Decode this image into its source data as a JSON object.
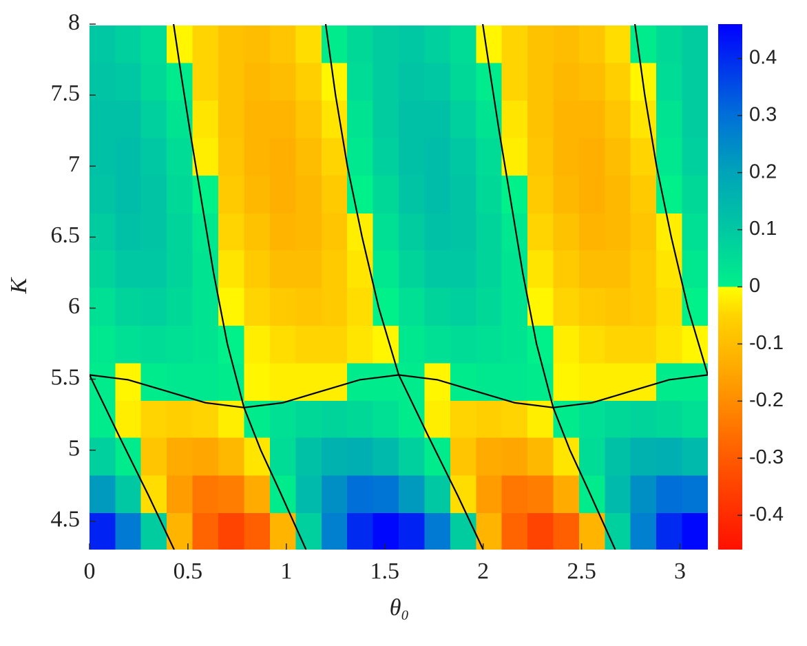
{
  "chart_data": {
    "type": "heatmap",
    "xlabel": "θ₀",
    "ylabel": "K",
    "xlim": [
      0,
      3.1416
    ],
    "ylim": [
      4.3,
      8
    ],
    "xticks": [
      0,
      0.5,
      1,
      1.5,
      2,
      2.5,
      3
    ],
    "yticks": [
      4.5,
      5,
      5.5,
      6,
      6.5,
      7,
      7.5,
      8
    ],
    "clim": [
      -0.46,
      0.46
    ],
    "cticks": [
      -0.4,
      -0.3,
      -0.2,
      -0.1,
      0,
      0.1,
      0.2,
      0.3,
      0.4
    ],
    "colormap": [
      [
        -0.46,
        "#ff1000"
      ],
      [
        -0.3,
        "#ff5a00"
      ],
      [
        -0.15,
        "#ffa600"
      ],
      [
        -0.05,
        "#ffd400"
      ],
      [
        0,
        "#ffff00"
      ],
      [
        0,
        "#00f08a"
      ],
      [
        0.1,
        "#00c8a2"
      ],
      [
        0.2,
        "#00a4b8"
      ],
      [
        0.3,
        "#0070d8"
      ],
      [
        0.46,
        "#0000ff"
      ]
    ],
    "contour_color": "#000000",
    "x": [
      0.065,
      0.196,
      0.327,
      0.458,
      0.589,
      0.72,
      0.851,
      0.982,
      1.113,
      1.244,
      1.374,
      1.505,
      1.636,
      1.767,
      1.898,
      2.029,
      2.16,
      2.291,
      2.422,
      2.553,
      2.683,
      2.814,
      2.945,
      3.076
    ],
    "y": [
      4.43,
      4.69,
      4.96,
      5.22,
      5.48,
      5.75,
      6.01,
      6.28,
      6.54,
      6.8,
      7.07,
      7.33,
      7.6,
      7.86
    ],
    "z": [
      [
        0.41,
        0.28,
        0.09,
        -0.12,
        -0.28,
        -0.35,
        -0.29,
        -0.12,
        0.08,
        0.27,
        0.4,
        0.45,
        0.41,
        0.28,
        0.09,
        -0.12,
        -0.28,
        -0.35,
        -0.29,
        -0.12,
        0.08,
        0.27,
        0.4,
        0.45
      ],
      [
        0.22,
        0.1,
        -0.04,
        -0.17,
        -0.245,
        -0.23,
        -0.14,
        0.01,
        0.14,
        0.24,
        0.3,
        0.29,
        0.22,
        0.1,
        -0.04,
        -0.17,
        -0.245,
        -0.23,
        -0.14,
        0.01,
        0.14,
        0.24,
        0.3,
        0.29
      ],
      [
        0.08,
        0.01,
        -0.08,
        -0.14,
        -0.15,
        -0.11,
        -0.03,
        0.05,
        0.12,
        0.16,
        0.17,
        0.14,
        0.08,
        0.01,
        -0.08,
        -0.14,
        -0.15,
        -0.11,
        -0.03,
        0.05,
        0.12,
        0.16,
        0.17,
        0.14
      ],
      [
        0.01,
        -0.02,
        -0.05,
        -0.06,
        -0.05,
        -0.02,
        0.01,
        0.04,
        0.06,
        0.07,
        0.06,
        0.04,
        0.01,
        -0.02,
        -0.05,
        -0.06,
        -0.05,
        -0.02,
        0.01,
        0.04,
        0.06,
        0.07,
        0.06,
        0.04
      ],
      [
        0.01,
        -0.01,
        0.01,
        0.02,
        0.02,
        0.01,
        -0.01,
        -0.02,
        -0.02,
        -0.02,
        0.01,
        0.01,
        0.01,
        -0.01,
        0.01,
        0.02,
        0.02,
        0.01,
        -0.01,
        -0.02,
        -0.02,
        -0.02,
        0.01,
        0.01
      ],
      [
        0.02,
        0.04,
        0.05,
        0.04,
        0.03,
        0.0,
        -0.02,
        -0.04,
        -0.05,
        -0.05,
        -0.03,
        -0.01,
        0.02,
        0.04,
        0.05,
        0.04,
        0.03,
        0.0,
        -0.02,
        -0.04,
        -0.05,
        -0.05,
        -0.03,
        -0.01
      ],
      [
        0.04,
        0.07,
        0.08,
        0.06,
        0.03,
        -0.01,
        -0.05,
        -0.07,
        -0.08,
        -0.07,
        -0.04,
        0.0,
        0.04,
        0.07,
        0.08,
        0.06,
        0.03,
        -0.01,
        -0.05,
        -0.07,
        -0.08,
        -0.07,
        -0.04,
        0.0
      ],
      [
        0.07,
        0.1,
        0.1,
        0.07,
        0.03,
        -0.03,
        -0.07,
        -0.1,
        -0.1,
        -0.07,
        -0.03,
        0.02,
        0.07,
        0.1,
        0.1,
        0.07,
        0.03,
        -0.03,
        -0.07,
        -0.1,
        -0.1,
        -0.07,
        -0.03,
        0.02
      ],
      [
        0.09,
        0.12,
        0.11,
        0.07,
        0.02,
        -0.05,
        -0.09,
        -0.12,
        -0.11,
        -0.08,
        -0.02,
        0.04,
        0.09,
        0.12,
        0.11,
        0.07,
        0.02,
        -0.05,
        -0.09,
        -0.12,
        -0.11,
        -0.08,
        -0.02,
        0.04
      ],
      [
        0.11,
        0.13,
        0.11,
        0.06,
        0.0,
        -0.07,
        -0.11,
        -0.13,
        -0.11,
        -0.07,
        0.0,
        0.06,
        0.11,
        0.13,
        0.11,
        0.06,
        0.0,
        -0.07,
        -0.11,
        -0.13,
        -0.11,
        -0.07,
        0.0,
        0.06
      ],
      [
        0.12,
        0.13,
        0.1,
        0.05,
        -0.02,
        -0.08,
        -0.12,
        -0.13,
        -0.1,
        -0.05,
        0.02,
        0.08,
        0.12,
        0.13,
        0.1,
        0.05,
        -0.02,
        -0.08,
        -0.12,
        -0.13,
        -0.1,
        -0.05,
        0.02,
        0.08
      ],
      [
        0.12,
        0.12,
        0.08,
        0.03,
        -0.03,
        -0.09,
        -0.12,
        -0.12,
        -0.08,
        -0.03,
        0.03,
        0.09,
        0.12,
        0.12,
        0.08,
        0.03,
        -0.03,
        -0.09,
        -0.12,
        -0.12,
        -0.08,
        -0.03,
        0.03,
        0.09
      ],
      [
        0.11,
        0.1,
        0.06,
        0.01,
        -0.05,
        -0.09,
        -0.11,
        -0.1,
        -0.06,
        -0.01,
        0.05,
        0.09,
        0.11,
        0.1,
        0.06,
        0.01,
        -0.05,
        -0.09,
        -0.11,
        -0.1,
        -0.06,
        -0.01,
        0.05,
        0.09
      ],
      [
        0.1,
        0.08,
        0.05,
        -0.01,
        -0.05,
        -0.09,
        -0.1,
        -0.08,
        -0.04,
        0.01,
        0.06,
        0.09,
        0.1,
        0.08,
        0.05,
        -0.01,
        -0.05,
        -0.09,
        -0.1,
        -0.08,
        -0.04,
        0.01,
        0.06,
        0.09
      ]
    ],
    "contours": [
      {
        "x": [
          0,
          0.196,
          0.393,
          0.589,
          0.785,
          0.982,
          1.178,
          1.374,
          1.571,
          1.767,
          1.963,
          2.16,
          2.356,
          2.553,
          2.749,
          2.945,
          3.1416
        ],
        "y": [
          5.53,
          5.496,
          5.415,
          5.334,
          5.3,
          5.334,
          5.415,
          5.496,
          5.53,
          5.496,
          5.415,
          5.334,
          5.3,
          5.334,
          5.415,
          5.496,
          5.53
        ]
      },
      {
        "x": [
          0,
          0.15,
          0.3,
          0.43
        ],
        "y": [
          5.53,
          5.1,
          4.68,
          4.3
        ]
      },
      {
        "x": [
          1.571,
          1.721,
          1.871,
          2.0
        ],
        "y": [
          5.53,
          5.1,
          4.68,
          4.3
        ]
      },
      {
        "x": [
          0.785,
          0.87,
          0.97,
          1.1
        ],
        "y": [
          5.3,
          5.0,
          4.7,
          4.3
        ]
      },
      {
        "x": [
          2.356,
          2.441,
          2.541,
          2.671
        ],
        "y": [
          5.3,
          5.0,
          4.7,
          4.3
        ]
      },
      {
        "x": [
          0.785,
          0.7,
          0.63,
          0.57,
          0.51,
          0.465,
          0.427
        ],
        "y": [
          5.3,
          5.75,
          6.25,
          6.75,
          7.25,
          7.65,
          8
        ]
      },
      {
        "x": [
          2.356,
          2.271,
          2.201,
          2.141,
          2.081,
          2.036,
          1.998
        ],
        "y": [
          5.3,
          5.75,
          6.25,
          6.75,
          7.25,
          7.65,
          8
        ]
      },
      {
        "x": [
          1.571,
          1.47,
          1.385,
          1.31,
          1.25,
          1.2
        ],
        "y": [
          5.53,
          6.0,
          6.5,
          7.0,
          7.5,
          8
        ]
      },
      {
        "x": [
          3.1416,
          3.041,
          2.956,
          2.881,
          2.821,
          2.771
        ],
        "y": [
          5.53,
          6.0,
          6.5,
          7.0,
          7.5,
          8
        ]
      }
    ]
  }
}
